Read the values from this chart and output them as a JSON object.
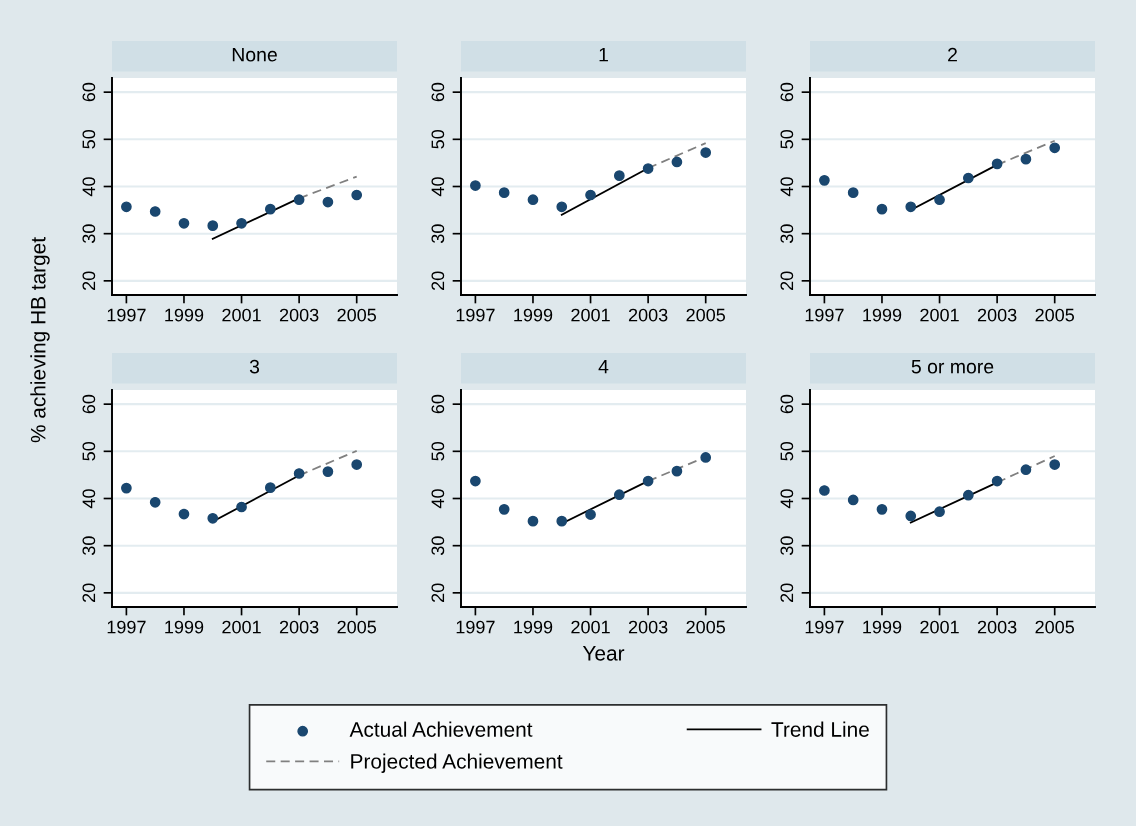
{
  "chart_data": [
    {
      "type": "line",
      "title": "None",
      "ylabel": "% achieving HB target",
      "xlim": [
        1996.5,
        2006.4
      ],
      "ylim": [
        17,
        63
      ],
      "xticks": [
        1997,
        1999,
        2001,
        2003,
        2005
      ],
      "yticks": [
        20,
        30,
        40,
        50,
        60
      ],
      "grid": "y",
      "legend": "bottom",
      "series": [
        {
          "name": "Actual Achievement",
          "type": "scatter",
          "marker": "circle",
          "color": "#1a476f",
          "x": [
            1997,
            1998,
            1999,
            2000,
            2001,
            2002,
            2003,
            2004,
            2005
          ],
          "values": [
            35.7,
            34.7,
            32.2,
            31.7,
            32.2,
            35.2,
            37.2,
            36.7,
            38.2
          ]
        },
        {
          "name": "Trend Line",
          "line_style": "solid",
          "color": "#000000",
          "x": [
            2000,
            2003
          ],
          "values": [
            28.9,
            37.5
          ]
        },
        {
          "name": "Projected Achievement",
          "line_style": "dashed",
          "color": "#808080",
          "x": [
            2003,
            2005
          ],
          "values": [
            37.5,
            42.1
          ]
        }
      ]
    },
    {
      "type": "line",
      "title": "1",
      "xlim": [
        1996.5,
        2006.4
      ],
      "ylim": [
        17,
        63
      ],
      "xticks": [
        1997,
        1999,
        2001,
        2003,
        2005
      ],
      "yticks": [
        20,
        30,
        40,
        50,
        60
      ],
      "grid": "y",
      "series": [
        {
          "type": "scatter",
          "marker": "circle",
          "color": "#1a476f",
          "x": [
            1997,
            1998,
            1999,
            2000,
            2001,
            2002,
            2003,
            2004,
            2005
          ],
          "values": [
            40.2,
            38.7,
            37.2,
            35.7,
            38.2,
            42.3,
            43.8,
            45.2,
            47.2
          ]
        },
        {
          "line_style": "solid",
          "color": "#000000",
          "x": [
            2000,
            2003
          ],
          "values": [
            34.0,
            43.9
          ]
        },
        {
          "line_style": "dashed",
          "color": "#808080",
          "x": [
            2003,
            2005
          ],
          "values": [
            43.9,
            49.2
          ]
        }
      ]
    },
    {
      "type": "line",
      "title": "2",
      "xlim": [
        1996.5,
        2006.4
      ],
      "ylim": [
        17,
        63
      ],
      "xticks": [
        1997,
        1999,
        2001,
        2003,
        2005
      ],
      "yticks": [
        20,
        30,
        40,
        50,
        60
      ],
      "grid": "y",
      "series": [
        {
          "type": "scatter",
          "marker": "circle",
          "color": "#1a476f",
          "x": [
            1997,
            1998,
            1999,
            2000,
            2001,
            2002,
            2003,
            2004,
            2005
          ],
          "values": [
            41.3,
            38.7,
            35.2,
            35.7,
            37.2,
            41.8,
            44.8,
            45.8,
            48.2
          ]
        },
        {
          "line_style": "solid",
          "color": "#000000",
          "x": [
            2000,
            2003
          ],
          "values": [
            35.0,
            44.6
          ]
        },
        {
          "line_style": "dashed",
          "color": "#808080",
          "x": [
            2003,
            2005
          ],
          "values": [
            44.6,
            49.7
          ]
        }
      ]
    },
    {
      "type": "line",
      "title": "3",
      "xlim": [
        1996.5,
        2006.4
      ],
      "ylim": [
        17,
        63
      ],
      "xticks": [
        1997,
        1999,
        2001,
        2003,
        2005
      ],
      "yticks": [
        20,
        30,
        40,
        50,
        60
      ],
      "grid": "y",
      "series": [
        {
          "type": "scatter",
          "marker": "circle",
          "color": "#1a476f",
          "x": [
            1997,
            1998,
            1999,
            2000,
            2001,
            2002,
            2003,
            2004,
            2005
          ],
          "values": [
            42.2,
            39.2,
            36.7,
            35.8,
            38.2,
            42.3,
            45.3,
            45.7,
            47.2
          ]
        },
        {
          "line_style": "solid",
          "color": "#000000",
          "x": [
            2000,
            2003
          ],
          "values": [
            35.1,
            44.9
          ]
        },
        {
          "line_style": "dashed",
          "color": "#808080",
          "x": [
            2003,
            2005
          ],
          "values": [
            44.9,
            50.1
          ]
        }
      ]
    },
    {
      "type": "line",
      "title": "4",
      "xlabel": "Year",
      "xlim": [
        1996.5,
        2006.4
      ],
      "ylim": [
        17,
        63
      ],
      "xticks": [
        1997,
        1999,
        2001,
        2003,
        2005
      ],
      "yticks": [
        20,
        30,
        40,
        50,
        60
      ],
      "grid": "y",
      "series": [
        {
          "type": "scatter",
          "marker": "circle",
          "color": "#1a476f",
          "x": [
            1997,
            1998,
            1999,
            2000,
            2001,
            2002,
            2003,
            2004,
            2005
          ],
          "values": [
            43.7,
            37.7,
            35.2,
            35.2,
            36.6,
            40.8,
            43.7,
            45.8,
            48.7
          ]
        },
        {
          "line_style": "solid",
          "color": "#000000",
          "x": [
            2000,
            2003
          ],
          "values": [
            34.7,
            43.7
          ]
        },
        {
          "line_style": "dashed",
          "color": "#808080",
          "x": [
            2003,
            2005
          ],
          "values": [
            43.7,
            48.8
          ]
        }
      ]
    },
    {
      "type": "line",
      "title": "5 or more",
      "xlim": [
        1996.5,
        2006.4
      ],
      "ylim": [
        17,
        63
      ],
      "xticks": [
        1997,
        1999,
        2001,
        2003,
        2005
      ],
      "yticks": [
        20,
        30,
        40,
        50,
        60
      ],
      "grid": "y",
      "series": [
        {
          "type": "scatter",
          "marker": "circle",
          "color": "#1a476f",
          "x": [
            1997,
            1998,
            1999,
            2000,
            2001,
            2002,
            2003,
            2004,
            2005
          ],
          "values": [
            41.7,
            39.7,
            37.7,
            36.3,
            37.2,
            40.7,
            43.7,
            46.1,
            47.2
          ]
        },
        {
          "line_style": "solid",
          "color": "#000000",
          "x": [
            2000,
            2003
          ],
          "values": [
            34.9,
            43.4
          ]
        },
        {
          "line_style": "dashed",
          "color": "#808080",
          "x": [
            2003,
            2005
          ],
          "values": [
            43.4,
            49.0
          ]
        }
      ]
    }
  ]
}
